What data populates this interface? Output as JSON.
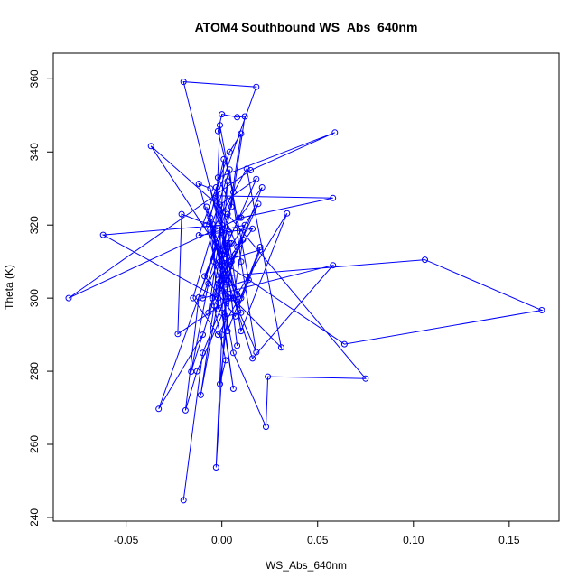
{
  "chart_data": {
    "type": "line",
    "title": "ATOM4 Southbound WS_Abs_640nm",
    "xlabel": "WS_Abs_640nm",
    "ylabel": "Theta (K)",
    "xlim": [
      -0.088,
      0.176
    ],
    "ylim": [
      239,
      367
    ],
    "xticks": [
      -0.05,
      0.0,
      0.05,
      0.1,
      0.15
    ],
    "xtick_labels": [
      "-0.05",
      "0.00",
      "0.05",
      "0.10",
      "0.15"
    ],
    "yticks": [
      240,
      260,
      280,
      300,
      320,
      340,
      360
    ],
    "ytick_labels": [
      "240",
      "260",
      "280",
      "300",
      "320",
      "340",
      "360"
    ],
    "grid": false,
    "colors": {
      "series": "#0000ff",
      "axes": "#000000"
    },
    "series": [
      {
        "marker": "open-circle",
        "points": [
          [
            -0.02,
            244.7
          ],
          [
            -0.01,
            285.0
          ],
          [
            0.002,
            300.5
          ],
          [
            -0.005,
            320.3
          ],
          [
            0.004,
            335.2
          ],
          [
            0.01,
            310.0
          ],
          [
            0.018,
            285.2
          ],
          [
            0.006,
            300.0
          ],
          [
            -0.003,
            315.2
          ],
          [
            -0.008,
            325.0
          ],
          [
            0.0,
            312.0
          ],
          [
            0.008,
            299.0
          ],
          [
            -0.002,
            290.0
          ],
          [
            -0.015,
            300.0
          ],
          [
            -0.005,
            318.0
          ],
          [
            0.012,
            320.0
          ],
          [
            0.003,
            305.0
          ],
          [
            -0.003,
            253.7
          ],
          [
            0.0,
            290.0
          ],
          [
            0.005,
            310.0
          ],
          [
            -0.006,
            330.0
          ],
          [
            -0.012,
            331.3
          ],
          [
            -0.001,
            310.0
          ],
          [
            0.002,
            295.0
          ],
          [
            0.01,
            296.0
          ],
          [
            -0.02,
            359.2
          ],
          [
            0.018,
            357.8
          ],
          [
            -0.008,
            320.0
          ],
          [
            0.0,
            302.0
          ],
          [
            0.006,
            285.0
          ],
          [
            0.023,
            264.8
          ],
          [
            0.024,
            278.5
          ],
          [
            0.075,
            278.0
          ],
          [
            0.003,
            323.0
          ],
          [
            -0.005,
            300.0
          ],
          [
            0.002,
            283.0
          ],
          [
            -0.001,
            276.5
          ],
          [
            0.004,
            300.0
          ],
          [
            -0.013,
            280.0
          ],
          [
            -0.019,
            269.3
          ],
          [
            -0.012,
            300.2
          ],
          [
            0.002,
            323.5
          ],
          [
            -0.037,
            341.6
          ],
          [
            0.0,
            312.0
          ],
          [
            0.006,
            329.0
          ],
          [
            -0.002,
            345.7
          ],
          [
            0.0,
            350.3
          ],
          [
            0.008,
            349.5
          ],
          [
            0.012,
            349.7
          ],
          [
            0.005,
            325.0
          ],
          [
            -0.002,
            333.0
          ],
          [
            0.059,
            345.3
          ],
          [
            0.015,
            335.0
          ],
          [
            -0.08,
            300.0
          ],
          [
            0.01,
            322.0
          ],
          [
            0.058,
            327.4
          ],
          [
            -0.003,
            328.0
          ],
          [
            0.008,
            314.0
          ],
          [
            0.0,
            308.0
          ],
          [
            -0.007,
            296.0
          ],
          [
            0.003,
            332.0
          ],
          [
            0.0,
            310.0
          ],
          [
            -0.002,
            297.0
          ],
          [
            -0.006,
            322.0
          ],
          [
            0.001,
            338.0
          ],
          [
            -0.002,
            300.0
          ],
          [
            -0.062,
            317.3
          ],
          [
            0.0,
            320.0
          ],
          [
            0.01,
            291.0
          ],
          [
            0.034,
            323.2
          ],
          [
            0.008,
            301.0
          ],
          [
            0.004,
            315.0
          ],
          [
            0.002,
            303.0
          ],
          [
            0.014,
            305.0
          ],
          [
            -0.001,
            347.3
          ],
          [
            -0.004,
            310.0
          ],
          [
            -0.01,
            300.0
          ],
          [
            0.058,
            309.0
          ],
          [
            0.016,
            283.5
          ],
          [
            0.006,
            300.0
          ],
          [
            0.011,
            316.0
          ],
          [
            0.0,
            306.0
          ],
          [
            0.106,
            310.5
          ],
          [
            0.167,
            296.7
          ],
          [
            0.064,
            287.4
          ],
          [
            0.0,
            310.0
          ],
          [
            0.02,
            313.2
          ],
          [
            0.007,
            295.0
          ],
          [
            -0.009,
            306.0
          ],
          [
            0.0,
            318.0
          ],
          [
            -0.033,
            269.7
          ],
          [
            -0.01,
            290.0
          ],
          [
            0.005,
            315.0
          ],
          [
            -0.016,
            279.9
          ],
          [
            -0.007,
            304.0
          ],
          [
            0.009,
            322.0
          ],
          [
            0.021,
            330.3
          ],
          [
            0.002,
            305.0
          ],
          [
            -0.004,
            298.0
          ],
          [
            -0.011,
            273.5
          ],
          [
            0.0,
            305.0
          ],
          [
            0.007,
            312.0
          ],
          [
            0.019,
            325.8
          ],
          [
            0.002,
            312.0
          ],
          [
            -0.003,
            330.3
          ],
          [
            0.003,
            291.0
          ],
          [
            0.02,
            314.0
          ],
          [
            0.01,
            300.0
          ],
          [
            0.0,
            309.0
          ],
          [
            -0.005,
            318.5
          ],
          [
            0.013,
            335.4
          ],
          [
            0.031,
            286.5
          ],
          [
            -0.002,
            304.0
          ],
          [
            0.004,
            318.0
          ],
          [
            -0.021,
            323.0
          ],
          [
            -0.023,
            290.2
          ],
          [
            0.005,
            300.0
          ],
          [
            0.008,
            287.0
          ],
          [
            -0.001,
            325.5
          ],
          [
            0.018,
            332.6
          ],
          [
            0.003,
            315.0
          ],
          [
            0.0,
            296.0
          ],
          [
            0.006,
            275.2
          ],
          [
            -0.002,
            305.0
          ],
          [
            0.016,
            319.0
          ],
          [
            -0.012,
            317.2
          ],
          [
            0.004,
            340.0
          ],
          [
            0.01,
            345.0
          ],
          [
            0.001,
            313.0
          ]
        ]
      }
    ]
  }
}
